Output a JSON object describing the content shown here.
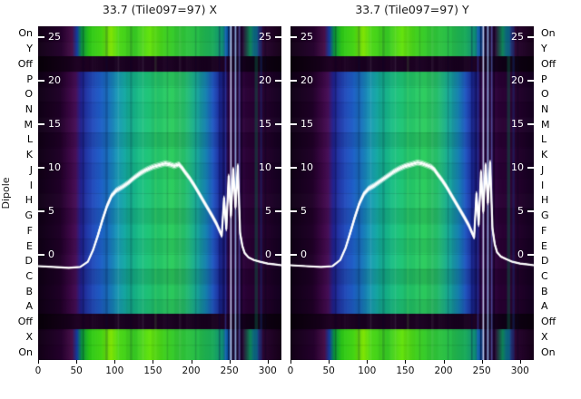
{
  "titles": {
    "left": "33.7 (Tile097=97) X",
    "right": "33.7 (Tile097=97) Y"
  },
  "axis": {
    "ylabel": "Dipole",
    "dipole_labels": [
      "On",
      "Y",
      "Off",
      "P",
      "O",
      "N",
      "M",
      "L",
      "K",
      "J",
      "I",
      "H",
      "G",
      "F",
      "E",
      "D",
      "C",
      "B",
      "A",
      "Off",
      "X",
      "On"
    ],
    "x_ticks": [
      0,
      50,
      100,
      150,
      200,
      250,
      300
    ],
    "inner_y_ticks": [
      25,
      20,
      15,
      10,
      5,
      0
    ]
  },
  "chart_data": [
    {
      "type": "heatmap",
      "title": "33.7 (Tile097=97) X",
      "xlabel": "",
      "ylabel": "Dipole",
      "x_range": [
        0,
        318
      ],
      "x_ticks": [
        0,
        50,
        100,
        150,
        200,
        250,
        300
      ],
      "rows": [
        "On",
        "Y",
        "Off",
        "P",
        "O",
        "N",
        "M",
        "L",
        "K",
        "J",
        "I",
        "H",
        "G",
        "F",
        "E",
        "D",
        "C",
        "B",
        "A",
        "Off",
        "X",
        "On"
      ],
      "overlay_line": {
        "name": "bandpass-power",
        "y_ticks": [
          25,
          20,
          15,
          10,
          5,
          0
        ],
        "x": [
          0,
          20,
          40,
          55,
          65,
          72,
          78,
          84,
          90,
          96,
          102,
          110,
          118,
          126,
          134,
          142,
          150,
          158,
          166,
          172,
          178,
          184,
          188,
          192,
          198,
          204,
          210,
          216,
          222,
          228,
          233,
          237,
          240,
          243,
          246,
          249,
          252,
          255,
          258,
          261,
          264,
          267,
          270,
          275,
          282,
          290,
          300,
          310,
          318
        ],
        "y": [
          -1.3,
          -1.4,
          -1.5,
          -1.4,
          -0.8,
          0.6,
          2.2,
          4.0,
          5.6,
          6.8,
          7.4,
          7.8,
          8.3,
          8.9,
          9.4,
          9.8,
          10.1,
          10.3,
          10.5,
          10.4,
          10.2,
          10.4,
          10.0,
          9.5,
          8.8,
          8.0,
          7.1,
          6.2,
          5.3,
          4.4,
          3.6,
          2.8,
          2.2,
          6.5,
          3.0,
          9.0,
          4.5,
          9.8,
          5.5,
          10.2,
          2.5,
          1.0,
          0.2,
          -0.3,
          -0.6,
          -0.8,
          -1.0,
          -1.1,
          -1.2
        ]
      }
    },
    {
      "type": "heatmap",
      "title": "33.7 (Tile097=97) Y",
      "xlabel": "",
      "ylabel": "Dipole",
      "x_range": [
        0,
        318
      ],
      "x_ticks": [
        0,
        50,
        100,
        150,
        200,
        250,
        300
      ],
      "rows": [
        "On",
        "Y",
        "Off",
        "P",
        "O",
        "N",
        "M",
        "L",
        "K",
        "J",
        "I",
        "H",
        "G",
        "F",
        "E",
        "D",
        "C",
        "B",
        "A",
        "Off",
        "X",
        "On"
      ],
      "overlay_line": {
        "name": "bandpass-power",
        "y_ticks": [
          25,
          20,
          15,
          10,
          5,
          0
        ],
        "x": [
          0,
          20,
          40,
          55,
          65,
          72,
          78,
          84,
          90,
          96,
          102,
          110,
          118,
          126,
          134,
          142,
          150,
          158,
          166,
          172,
          178,
          184,
          188,
          192,
          198,
          204,
          210,
          216,
          222,
          228,
          233,
          237,
          240,
          243,
          246,
          249,
          252,
          255,
          258,
          261,
          264,
          267,
          270,
          275,
          282,
          290,
          300,
          310,
          318
        ],
        "y": [
          -1.2,
          -1.3,
          -1.4,
          -1.3,
          -0.6,
          0.8,
          2.5,
          4.3,
          5.9,
          7.0,
          7.6,
          8.0,
          8.5,
          9.0,
          9.5,
          9.9,
          10.2,
          10.4,
          10.6,
          10.5,
          10.3,
          10.1,
          9.8,
          9.3,
          8.6,
          7.8,
          6.9,
          6.0,
          5.1,
          4.2,
          3.4,
          2.6,
          2.0,
          7.0,
          3.5,
          9.5,
          5.0,
          10.3,
          6.0,
          10.6,
          3.0,
          1.2,
          0.3,
          -0.2,
          -0.5,
          -0.8,
          -1.0,
          -1.1,
          -1.2
        ]
      }
    }
  ],
  "heatmap_style": {
    "row_kinds": [
      "bright",
      "bright",
      "dark",
      "mid",
      "mid",
      "mid",
      "mid",
      "mid",
      "mid",
      "mid",
      "mid",
      "mid",
      "mid",
      "mid",
      "mid",
      "mid",
      "mid",
      "mid",
      "mid",
      "dark",
      "bright",
      "bright"
    ],
    "row_gains": [
      1,
      1.04,
      1,
      0.94,
      1.03,
      0.97,
      1.05,
      0.92,
      1.02,
      0.96,
      1.0,
      1.04,
      0.93,
      1.01,
      0.95,
      1.03,
      0.9,
      0.98,
      0.92,
      1,
      1.02,
      1
    ],
    "gradients": {
      "bright": [
        [
          0.0,
          "#120016"
        ],
        [
          0.095,
          "#24002c"
        ],
        [
          0.14,
          "#471049"
        ],
        [
          0.16,
          "#123a9e"
        ],
        [
          0.18,
          "#0b9a3e"
        ],
        [
          0.21,
          "#2cc818"
        ],
        [
          0.26,
          "#44d414"
        ],
        [
          0.3,
          "#85ec06"
        ],
        [
          0.33,
          "#4cd814"
        ],
        [
          0.4,
          "#38cc26"
        ],
        [
          0.46,
          "#66e40e"
        ],
        [
          0.52,
          "#3ed01e"
        ],
        [
          0.58,
          "#32c836"
        ],
        [
          0.66,
          "#26bc4a"
        ],
        [
          0.72,
          "#18aa5a"
        ],
        [
          0.76,
          "#0e8a78"
        ],
        [
          0.778,
          "#0c5aaa"
        ],
        [
          0.8,
          "#241040"
        ],
        [
          0.84,
          "#2c0634"
        ],
        [
          0.872,
          "#0e8a5a"
        ],
        [
          0.898,
          "#0e50a0"
        ],
        [
          0.92,
          "#2a0532"
        ],
        [
          1.0,
          "#150018"
        ]
      ],
      "mid": [
        [
          0.0,
          "#100016"
        ],
        [
          0.09,
          "#200028"
        ],
        [
          0.135,
          "#3e0848"
        ],
        [
          0.155,
          "#471058"
        ],
        [
          0.175,
          "#232294"
        ],
        [
          0.21,
          "#2342b6"
        ],
        [
          0.25,
          "#1f5ac6"
        ],
        [
          0.29,
          "#1b78c6"
        ],
        [
          0.33,
          "#179cb4"
        ],
        [
          0.38,
          "#15b694"
        ],
        [
          0.44,
          "#1dc47c"
        ],
        [
          0.5,
          "#25ca6a"
        ],
        [
          0.55,
          "#2dce5e"
        ],
        [
          0.6,
          "#27c46c"
        ],
        [
          0.645,
          "#19ae92"
        ],
        [
          0.69,
          "#1786b8"
        ],
        [
          0.72,
          "#1f54c2"
        ],
        [
          0.745,
          "#1d2e9e"
        ],
        [
          0.765,
          "#141264"
        ],
        [
          0.785,
          "#380a50"
        ],
        [
          0.82,
          "#320642"
        ],
        [
          0.86,
          "#2c0338"
        ],
        [
          0.92,
          "#26002e"
        ],
        [
          1.0,
          "#140020"
        ]
      ],
      "dark": [
        [
          0.0,
          "#070008"
        ],
        [
          0.12,
          "#150019"
        ],
        [
          0.16,
          "#1f0324"
        ],
        [
          0.3,
          "#190220"
        ],
        [
          0.5,
          "#1d0323"
        ],
        [
          0.7,
          "#17021e"
        ],
        [
          0.78,
          "#210427"
        ],
        [
          0.86,
          "#110018"
        ],
        [
          1.0,
          "#09000b"
        ]
      ]
    },
    "stripes": [
      {
        "x": 58,
        "w": 2,
        "c": "#000020",
        "a": 0.25
      },
      {
        "x": 88,
        "w": 3,
        "c": "#001040",
        "a": 0.2
      },
      {
        "x": 104,
        "w": 2,
        "c": "#ffffff",
        "a": 0.08
      },
      {
        "x": 120,
        "w": 3,
        "c": "#000030",
        "a": 0.15
      },
      {
        "x": 136,
        "w": 2,
        "c": "#ffffff",
        "a": 0.07
      },
      {
        "x": 152,
        "w": 3,
        "c": "#88ff66",
        "a": 0.12
      },
      {
        "x": 168,
        "w": 2,
        "c": "#000030",
        "a": 0.12
      },
      {
        "x": 184,
        "w": 3,
        "c": "#ffffff",
        "a": 0.06
      },
      {
        "x": 205,
        "w": 2,
        "c": "#000030",
        "a": 0.15
      },
      {
        "x": 236,
        "w": 2,
        "c": "#000040",
        "a": 0.3
      },
      {
        "x": 244,
        "w": 2,
        "c": "#4060ff",
        "a": 0.35
      },
      {
        "x": 248,
        "w": 1,
        "c": "#000020",
        "a": 0.5
      },
      {
        "x": 251,
        "w": 2,
        "c": "#cfe0ff",
        "a": 0.85
      },
      {
        "x": 254,
        "w": 1,
        "c": "#000018",
        "a": 0.7
      },
      {
        "x": 257,
        "w": 2,
        "c": "#9fd4ff",
        "a": 0.75
      },
      {
        "x": 260,
        "w": 1,
        "c": "#000018",
        "a": 0.6
      },
      {
        "x": 262,
        "w": 2,
        "c": "#6080e0",
        "a": 0.5
      },
      {
        "x": 265,
        "w": 2,
        "c": "#000018",
        "a": 0.5
      },
      {
        "x": 283,
        "w": 4,
        "c": "#0a7a50",
        "a": 0.35
      },
      {
        "x": 290,
        "w": 3,
        "c": "#1040a0",
        "a": 0.3
      },
      {
        "x": 296,
        "w": 2,
        "c": "#000020",
        "a": 0.3
      }
    ]
  }
}
